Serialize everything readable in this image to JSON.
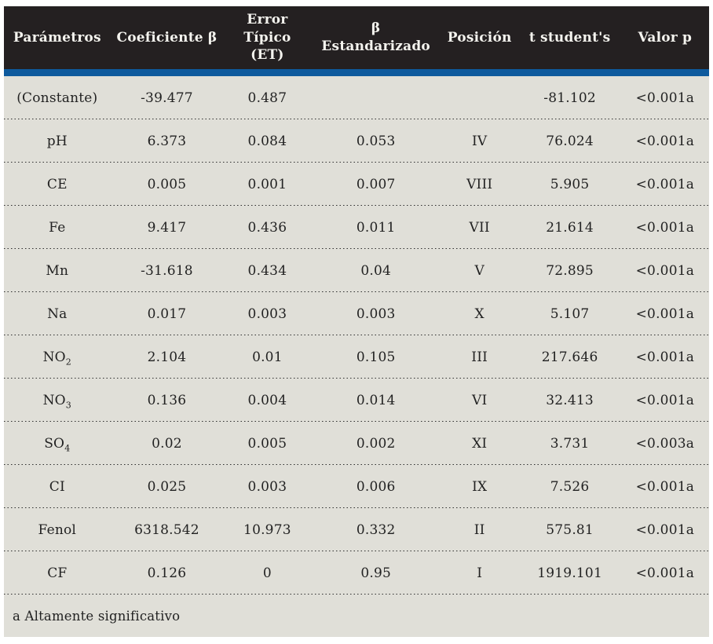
{
  "colors": {
    "header_bg": "#242021",
    "header_text": "#f4f3ee",
    "accent_bar_blue": "#0e5a9d",
    "body_bg": "#e0dfd8",
    "body_text": "#222222"
  },
  "table": {
    "headers": [
      "Parámetros",
      "Coeficiente β",
      "Error\nTípico\n(ET)",
      "β\nEstandarizado",
      "Posición",
      "t student's",
      "Valor p"
    ],
    "rows": [
      {
        "param": "(Constante)",
        "sub": "",
        "coef": "-39.477",
        "et": "0.487",
        "beta_std": "",
        "pos": "",
        "t": "-81.102",
        "p": "<0.001a"
      },
      {
        "param": "pH",
        "sub": "",
        "coef": "6.373",
        "et": "0.084",
        "beta_std": "0.053",
        "pos": "IV",
        "t": "76.024",
        "p": "<0.001a"
      },
      {
        "param": "CE",
        "sub": "",
        "coef": "0.005",
        "et": "0.001",
        "beta_std": "0.007",
        "pos": "VIII",
        "t": "5.905",
        "p": "<0.001a"
      },
      {
        "param": "Fe",
        "sub": "",
        "coef": "9.417",
        "et": "0.436",
        "beta_std": "0.011",
        "pos": "VII",
        "t": "21.614",
        "p": "<0.001a"
      },
      {
        "param": "Mn",
        "sub": "",
        "coef": "-31.618",
        "et": "0.434",
        "beta_std": "0.04",
        "pos": "V",
        "t": "72.895",
        "p": "<0.001a"
      },
      {
        "param": "Na",
        "sub": "",
        "coef": "0.017",
        "et": "0.003",
        "beta_std": "0.003",
        "pos": "X",
        "t": "5.107",
        "p": "<0.001a"
      },
      {
        "param": "NO",
        "sub": "2",
        "coef": "2.104",
        "et": "0.01",
        "beta_std": "0.105",
        "pos": "III",
        "t": "217.646",
        "p": "<0.001a"
      },
      {
        "param": "NO",
        "sub": "3",
        "coef": "0.136",
        "et": "0.004",
        "beta_std": "0.014",
        "pos": "VI",
        "t": "32.413",
        "p": "<0.001a"
      },
      {
        "param": "SO",
        "sub": "4",
        "coef": "0.02",
        "et": "0.005",
        "beta_std": "0.002",
        "pos": "XI",
        "t": "3.731",
        "p": "<0.003a"
      },
      {
        "param": "CI",
        "sub": "",
        "coef": "0.025",
        "et": "0.003",
        "beta_std": "0.006",
        "pos": "IX",
        "t": "7.526",
        "p": "<0.001a"
      },
      {
        "param": "Fenol",
        "sub": "",
        "coef": "6318.542",
        "et": "10.973",
        "beta_std": "0.332",
        "pos": "II",
        "t": "575.81",
        "p": "<0.001a"
      },
      {
        "param": "CF",
        "sub": "",
        "coef": "0.126",
        "et": "0",
        "beta_std": "0.95",
        "pos": "I",
        "t": "1919.101",
        "p": "<0.001a"
      }
    ],
    "footnote": "a Altamente significativo"
  }
}
